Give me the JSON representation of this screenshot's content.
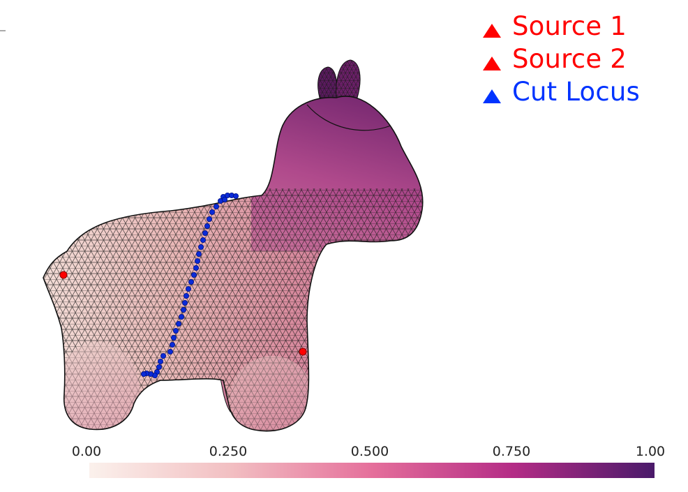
{
  "legend": {
    "items": [
      {
        "label": "Source 1",
        "color": "#ff0000"
      },
      {
        "label": "Source 2",
        "color": "#ff0000"
      },
      {
        "label": "Cut Locus",
        "color": "#0033ff"
      }
    ]
  },
  "colorbar": {
    "ticks": [
      "0.00",
      "0.250",
      "0.500",
      "0.750",
      "1.00"
    ],
    "colormap": "magma-like (white → pink → magenta → dark purple)",
    "range": [
      0,
      1
    ],
    "stops": [
      "#fbf1ec",
      "#f2c3c6",
      "#e57a9d",
      "#c43a8a",
      "#8f1a7a",
      "#4e1a6e"
    ]
  },
  "mesh": {
    "description_colors": {
      "mesh_edge": "#111111",
      "source_marker": "#ff0000",
      "cut_locus_marker": "#0033ff"
    }
  }
}
